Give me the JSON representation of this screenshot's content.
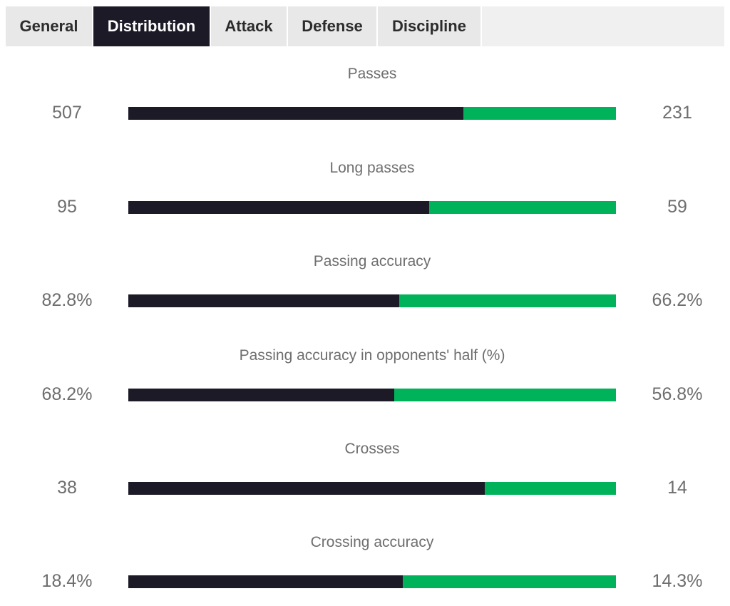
{
  "tabs": [
    {
      "label": "General",
      "active": false
    },
    {
      "label": "Distribution",
      "active": true
    },
    {
      "label": "Attack",
      "active": false
    },
    {
      "label": "Defense",
      "active": false
    },
    {
      "label": "Discipline",
      "active": false
    }
  ],
  "colors": {
    "home": "#1b1a26",
    "away": "#00b25a",
    "active_tab": "#1b1a26"
  },
  "stats": [
    {
      "title": "Passes",
      "home": "507",
      "away": "231",
      "home_share": 0.687
    },
    {
      "title": "Long passes",
      "home": "95",
      "away": "59",
      "home_share": 0.617
    },
    {
      "title": "Passing accuracy",
      "home": "82.8%",
      "away": "66.2%",
      "home_share": 0.556
    },
    {
      "title": "Passing accuracy in opponents' half (%)",
      "home": "68.2%",
      "away": "56.8%",
      "home_share": 0.546
    },
    {
      "title": "Crosses",
      "home": "38",
      "away": "14",
      "home_share": 0.731
    },
    {
      "title": "Crossing accuracy",
      "home": "18.4%",
      "away": "14.3%",
      "home_share": 0.563
    }
  ]
}
